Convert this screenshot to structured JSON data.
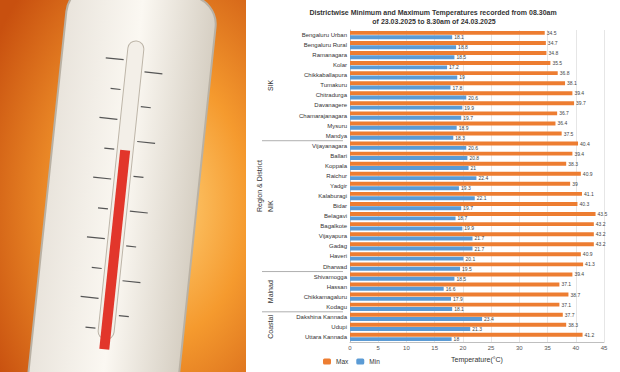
{
  "chart_data": {
    "type": "bar",
    "orientation": "horizontal",
    "title": "Districtwise Minimum and Maximum Temperatures recorded from 08.30am of 23.03.2025 to 8.30am of 24.03.2025",
    "x_label": "Temperature(°C)",
    "y_label": "Region & District",
    "categories": [
      "Bengaluru Urban",
      "Bengaluru Rural",
      "Ramanagara",
      "Kolar",
      "Chikkaballapura",
      "Tumakuru",
      "Chitradurga",
      "Davanagere",
      "Chamarajanagara",
      "Mysuru",
      "Mandya",
      "Vijayanagara",
      "Ballari",
      "Koppala",
      "Raichur",
      "Yadgir",
      "Kalaburagi",
      "Bidar",
      "Belagavi",
      "Bagalkote",
      "Vijayapura",
      "Gadag",
      "Haveri",
      "Dharwad",
      "Shivamogga",
      "Hassan",
      "Chikkamagaluru",
      "Kodagu",
      "Dakshina Kannada",
      "Udupi",
      "Uttara Kannada"
    ],
    "groups": [
      {
        "name": "SIK",
        "size": 11
      },
      {
        "name": "NIK",
        "size": 13
      },
      {
        "name": "Malnad",
        "size": 4
      },
      {
        "name": "Coastal",
        "size": 3
      }
    ],
    "series": [
      {
        "name": "Max",
        "color": "#ed7d31",
        "values": [
          34.5,
          34.7,
          34.8,
          35.5,
          36.8,
          38.1,
          39.4,
          39.7,
          36.7,
          36.4,
          37.5,
          40.4,
          39.4,
          38.3,
          40.9,
          39.0,
          41.1,
          40.3,
          43.5,
          43.2,
          43.2,
          43.2,
          40.9,
          41.3,
          39.4,
          37.1,
          38.7,
          37.1,
          37.7,
          38.3,
          41.2
        ]
      },
      {
        "name": "Min",
        "color": "#5b9bd5",
        "values": [
          18.1,
          18.8,
          18.5,
          17.2,
          19.0,
          17.8,
          20.6,
          19.9,
          19.7,
          18.9,
          18.3,
          20.6,
          20.8,
          21.0,
          22.4,
          19.3,
          22.1,
          19.7,
          18.7,
          19.9,
          21.7,
          21.7,
          20.1,
          19.5,
          18.5,
          16.6,
          17.9,
          18.1,
          23.4,
          21.3,
          18.0
        ]
      }
    ],
    "xlim": [
      0,
      45
    ],
    "xticks": [
      0,
      5,
      10,
      15,
      20,
      25,
      30,
      35,
      40,
      45
    ],
    "grid": true,
    "legend": "bottom-left",
    "data_labels": true
  }
}
